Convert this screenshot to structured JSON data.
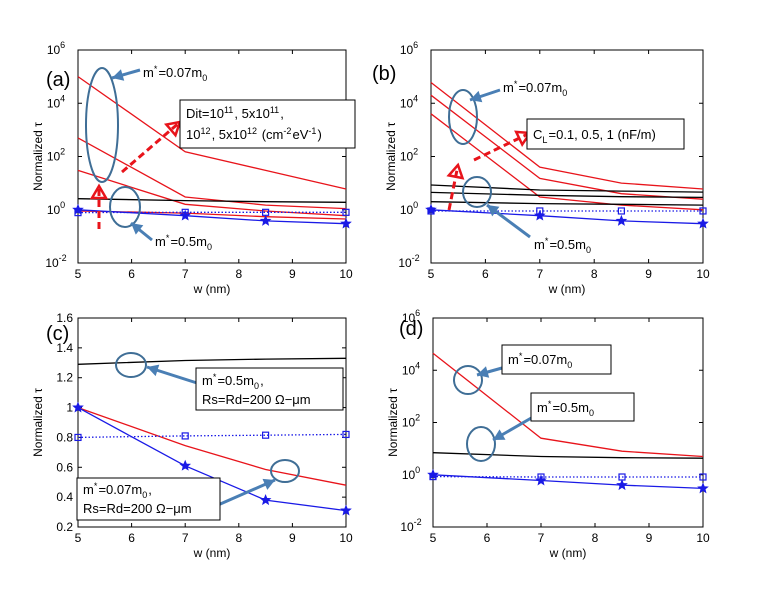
{
  "figure": {
    "sub_tau": "τ",
    "colors": {
      "red": "#e8141b",
      "black": "#000000",
      "blue": "#1a1ae6",
      "arrow_blue": "#4a7fb5",
      "ellipse": "#3f6e96",
      "dashed_red": "#e8141b"
    }
  },
  "chart_data": [
    {
      "panel": "(a)",
      "type": "line",
      "yscale": "log",
      "xlabel": "w (nm)",
      "ylabel": "Normalized τ",
      "xlim": [
        5,
        10
      ],
      "ylim": [
        0.01,
        1000000
      ],
      "xticks": [
        "5",
        "6",
        "7",
        "8",
        "9",
        "10"
      ],
      "yticks": [
        {
          "base": "10",
          "exp": "-2"
        },
        {
          "base": "10",
          "exp": "0"
        },
        {
          "base": "10",
          "exp": "2"
        },
        {
          "base": "10",
          "exp": "4"
        },
        {
          "base": "10",
          "exp": "6"
        }
      ],
      "series": [
        {
          "name": "m*=0.07m0 Dit=1e11",
          "color": "red",
          "style": "solid",
          "marker": "none",
          "x": [
            5,
            7,
            8.5,
            10
          ],
          "y": [
            0.9,
            0.75,
            0.55,
            0.45
          ]
        },
        {
          "name": "m*=0.07m0 Dit=5e11",
          "color": "red",
          "style": "solid",
          "marker": "none",
          "x": [
            5,
            7,
            8.5,
            10
          ],
          "y": [
            30,
            1.6,
            0.9,
            0.6
          ]
        },
        {
          "name": "m*=0.07m0 Dit=1e12",
          "color": "red",
          "style": "solid",
          "marker": "none",
          "x": [
            5,
            7,
            8.5,
            10
          ],
          "y": [
            500,
            3,
            1.5,
            1.1
          ]
        },
        {
          "name": "m*=0.07m0 Dit=5e12",
          "color": "red",
          "style": "solid",
          "marker": "none",
          "x": [
            5,
            7,
            8.5,
            10
          ],
          "y": [
            100000,
            150,
            30,
            6
          ]
        },
        {
          "name": "black",
          "color": "black",
          "style": "solid",
          "marker": "none",
          "x": [
            5,
            7,
            8.5,
            10
          ],
          "y": [
            2.6,
            2.2,
            2.0,
            1.9
          ]
        },
        {
          "name": "m*=0.5m0 squares",
          "color": "blue",
          "style": "dotted",
          "marker": "square",
          "x": [
            5,
            7,
            8.5,
            10
          ],
          "y": [
            0.78,
            0.8,
            0.8,
            0.8
          ]
        },
        {
          "name": "m*=0.5m0 stars",
          "color": "blue",
          "style": "solid",
          "marker": "star",
          "x": [
            5,
            7,
            8.5,
            10
          ],
          "y": [
            1.0,
            0.6,
            0.38,
            0.3
          ]
        }
      ],
      "annotations": {
        "m07": {
          "pre": "m",
          "sup": "*",
          "mid": "=0.07m",
          "sub": "0"
        },
        "m05": {
          "pre": "m",
          "sup": "*",
          "mid": "=0.5m",
          "sub": "0"
        },
        "dit_line1": "Dit=10",
        "dit_sup1": "11",
        "dit_mid1": ", 5x10",
        "dit_sup2": "11",
        "dit_end1": ",",
        "dit_line2a": "10",
        "dit_sup3": "12",
        "dit_mid2": ", 5x10",
        "dit_sup4": "12",
        "dit_mid3": " (cm",
        "dit_sup5": "-2",
        "dit_mid4": "eV",
        "dit_sup6": "-1",
        "dit_end2": ")"
      }
    },
    {
      "panel": "(b)",
      "type": "line",
      "yscale": "log",
      "xlabel": "w (nm)",
      "ylabel": "Normalized τ",
      "xlim": [
        5,
        10
      ],
      "ylim": [
        0.01,
        1000000
      ],
      "xticks": [
        "5",
        "6",
        "7",
        "8",
        "9",
        "10"
      ],
      "yticks": [
        {
          "base": "10",
          "exp": "-2"
        },
        {
          "base": "10",
          "exp": "0"
        },
        {
          "base": "10",
          "exp": "2"
        },
        {
          "base": "10",
          "exp": "4"
        },
        {
          "base": "10",
          "exp": "6"
        }
      ],
      "series": [
        {
          "name": "red CL=0.1",
          "color": "red",
          "style": "solid",
          "marker": "none",
          "x": [
            5,
            7,
            8.5,
            10
          ],
          "y": [
            4000,
            3,
            1.5,
            1.0
          ]
        },
        {
          "name": "red CL=0.5",
          "color": "red",
          "style": "solid",
          "marker": "none",
          "x": [
            5,
            7,
            8.5,
            10
          ],
          "y": [
            20000,
            15,
            4,
            2.5
          ]
        },
        {
          "name": "red CL=1",
          "color": "red",
          "style": "solid",
          "marker": "none",
          "x": [
            5,
            7,
            8.5,
            10
          ],
          "y": [
            60000,
            40,
            10,
            6
          ]
        },
        {
          "name": "black 1",
          "color": "black",
          "style": "solid",
          "marker": "none",
          "x": [
            5,
            7,
            8.5,
            10
          ],
          "y": [
            2.0,
            1.7,
            1.6,
            1.5
          ]
        },
        {
          "name": "black 2",
          "color": "black",
          "style": "solid",
          "marker": "none",
          "x": [
            5,
            7,
            8.5,
            10
          ],
          "y": [
            4.5,
            3.5,
            3.1,
            2.9
          ]
        },
        {
          "name": "black 3",
          "color": "black",
          "style": "solid",
          "marker": "none",
          "x": [
            5,
            7,
            8.5,
            10
          ],
          "y": [
            8.5,
            5.5,
            5.0,
            4.6
          ]
        },
        {
          "name": "m*=0.5m0 squares",
          "color": "blue",
          "style": "dotted",
          "marker": "square",
          "x": [
            5,
            7,
            8.5,
            10
          ],
          "y": [
            0.9,
            0.9,
            0.9,
            0.9
          ]
        },
        {
          "name": "m*=0.5m0 stars",
          "color": "blue",
          "style": "solid",
          "marker": "star",
          "x": [
            5,
            7,
            8.5,
            10
          ],
          "y": [
            1.0,
            0.6,
            0.38,
            0.3
          ]
        }
      ],
      "annotations": {
        "m07": {
          "pre": "m",
          "sup": "*",
          "mid": "=0.07m",
          "sub": "0"
        },
        "m05": {
          "pre": "m",
          "sup": "*",
          "mid": "=0.5m",
          "sub": "0"
        },
        "cl_pre": "C",
        "cl_sub": "L",
        "cl_post": "=0.1, 0.5, 1 (nF/m)"
      }
    },
    {
      "panel": "(c)",
      "type": "line",
      "yscale": "linear",
      "xlabel": "w (nm)",
      "ylabel": "Normalized τ",
      "xlim": [
        5,
        10
      ],
      "ylim": [
        0.2,
        1.6
      ],
      "xticks": [
        "5",
        "6",
        "7",
        "8",
        "9",
        "10"
      ],
      "yticks": [
        "0.2",
        "0.4",
        "0.6",
        "0.8",
        "1",
        "1.2",
        "1.4",
        "1.6"
      ],
      "series": [
        {
          "name": "black m*=0.5m0 Rs=Rd",
          "color": "black",
          "style": "solid",
          "marker": "none",
          "x": [
            5,
            7,
            8.5,
            10
          ],
          "y": [
            1.29,
            1.315,
            1.325,
            1.33
          ]
        },
        {
          "name": "red m*=0.07m0 Rs=Rd",
          "color": "red",
          "style": "solid",
          "marker": "none",
          "x": [
            5,
            7,
            8.5,
            10
          ],
          "y": [
            1.0,
            0.745,
            0.585,
            0.48
          ]
        },
        {
          "name": "blue squares",
          "color": "blue",
          "style": "dotted",
          "marker": "square",
          "x": [
            5,
            7,
            8.5,
            10
          ],
          "y": [
            0.8,
            0.81,
            0.815,
            0.82
          ]
        },
        {
          "name": "blue stars",
          "color": "blue",
          "style": "solid",
          "marker": "star",
          "x": [
            5,
            7,
            8.5,
            10
          ],
          "y": [
            1.0,
            0.61,
            0.38,
            0.31
          ]
        }
      ],
      "annotations": {
        "box1_line1": {
          "pre": "m",
          "sup": "*",
          "mid": "=0.5m",
          "sub": "0",
          "end": ","
        },
        "box1_line2": "Rs=Rd=200 Ω−μm",
        "box2_line1": {
          "pre": "m",
          "sup": "*",
          "mid": "=0.07m",
          "sub": "0",
          "end": ","
        },
        "box2_line2": "Rs=Rd=200 Ω−μm"
      }
    },
    {
      "panel": "(d)",
      "type": "line",
      "yscale": "log",
      "xlabel": "w (nm)",
      "ylabel": "Normalized τ",
      "xlim": [
        5,
        10
      ],
      "ylim": [
        0.01,
        1000000
      ],
      "xticks": [
        "5",
        "6",
        "7",
        "8",
        "9",
        "10"
      ],
      "yticks": [
        {
          "base": "10",
          "exp": "-2"
        },
        {
          "base": "10",
          "exp": "0"
        },
        {
          "base": "10",
          "exp": "2"
        },
        {
          "base": "10",
          "exp": "4"
        },
        {
          "base": "10",
          "exp": "6"
        }
      ],
      "series": [
        {
          "name": "red m*=0.07m0",
          "color": "red",
          "style": "solid",
          "marker": "none",
          "x": [
            5,
            7,
            8.5,
            10
          ],
          "y": [
            45000,
            25,
            8,
            5
          ]
        },
        {
          "name": "black m*=0.5m0",
          "color": "black",
          "style": "solid",
          "marker": "none",
          "x": [
            5,
            7,
            8.5,
            10
          ],
          "y": [
            7,
            5,
            4.5,
            4.3
          ]
        },
        {
          "name": "blue squares",
          "color": "blue",
          "style": "dotted",
          "marker": "square",
          "x": [
            5,
            7,
            8.5,
            10
          ],
          "y": [
            0.85,
            0.82,
            0.82,
            0.82
          ]
        },
        {
          "name": "blue stars",
          "color": "blue",
          "style": "solid",
          "marker": "star",
          "x": [
            5,
            7,
            8.5,
            10
          ],
          "y": [
            1.0,
            0.6,
            0.4,
            0.3
          ]
        }
      ],
      "annotations": {
        "m07": {
          "pre": "m",
          "sup": "*",
          "mid": "=0.07m",
          "sub": "0"
        },
        "m05": {
          "pre": "m",
          "sup": "*",
          "mid": "=0.5m",
          "sub": "0"
        }
      }
    }
  ]
}
